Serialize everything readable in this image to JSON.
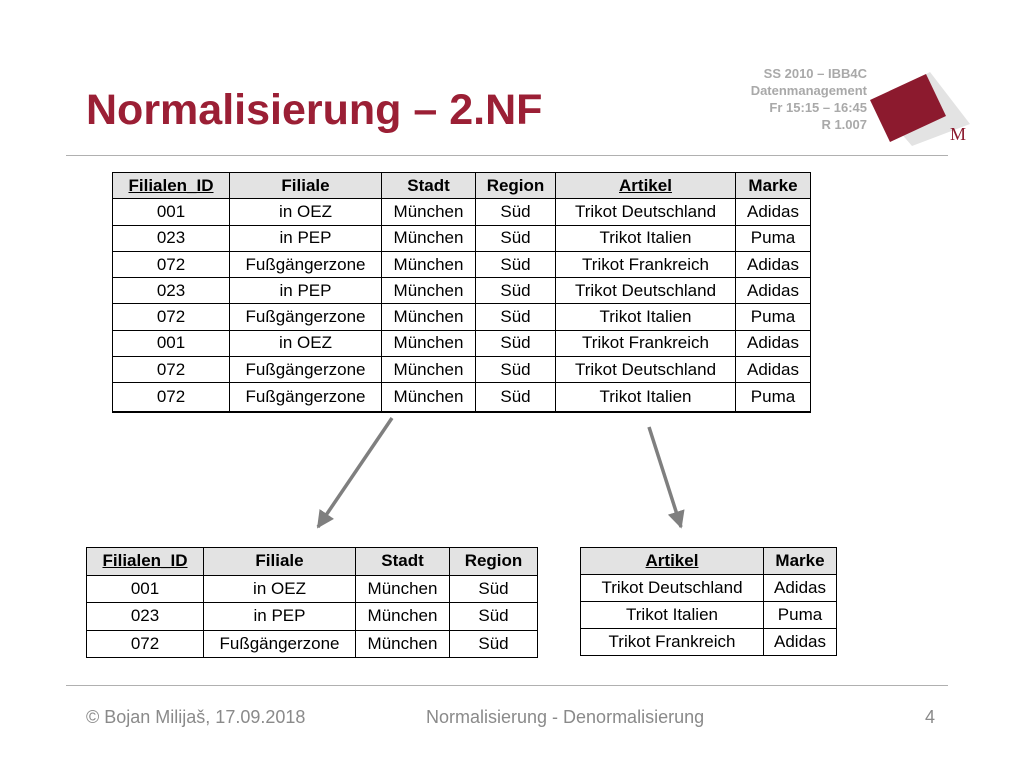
{
  "header": {
    "title": "Normalisierung – 2.NF",
    "course_lines": [
      "SS 2010 – IBB4C",
      "Datenmanagement",
      "Fr 15:15 – 16:45",
      "R 1.007"
    ],
    "logo_letter": "M"
  },
  "colors": {
    "title": "#9b1f35",
    "logo_dark": "#8c1a2e",
    "logo_light": "#e3e3e3",
    "table_header_bg": "#e3e3e3",
    "rule": "#b0b0b0",
    "footer_text": "#8a8a8a"
  },
  "tables": {
    "main": {
      "headers": [
        "Filialen_ID",
        "Filiale",
        "Stadt",
        "Region",
        "Artikel",
        "Marke"
      ],
      "rows": [
        [
          "001",
          "in OEZ",
          "München",
          "Süd",
          "Trikot Deutschland",
          "Adidas"
        ],
        [
          "023",
          "in PEP",
          "München",
          "Süd",
          "Trikot Italien",
          "Puma"
        ],
        [
          "072",
          "Fußgängerzone",
          "München",
          "Süd",
          "Trikot Frankreich",
          "Adidas"
        ],
        [
          "023",
          "in PEP",
          "München",
          "Süd",
          "Trikot Deutschland",
          "Adidas"
        ],
        [
          "072",
          "Fußgängerzone",
          "München",
          "Süd",
          "Trikot Italien",
          "Puma"
        ],
        [
          "001",
          "in OEZ",
          "München",
          "Süd",
          "Trikot Frankreich",
          "Adidas"
        ],
        [
          "072",
          "Fußgängerzone",
          "München",
          "Süd",
          "Trikot Deutschland",
          "Adidas"
        ],
        [
          "072",
          "Fußgängerzone",
          "München",
          "Süd",
          "Trikot Italien",
          "Puma"
        ]
      ]
    },
    "filiale": {
      "headers": [
        "Filialen_ID",
        "Filiale",
        "Stadt",
        "Region"
      ],
      "rows": [
        [
          "001",
          "in OEZ",
          "München",
          "Süd"
        ],
        [
          "023",
          "in PEP",
          "München",
          "Süd"
        ],
        [
          "072",
          "Fußgängerzone",
          "München",
          "Süd"
        ]
      ]
    },
    "artikel": {
      "headers": [
        "Artikel",
        "Marke"
      ],
      "rows": [
        [
          "Trikot Deutschland",
          "Adidas"
        ],
        [
          "Trikot Italien",
          "Puma"
        ],
        [
          "Trikot Frankreich",
          "Adidas"
        ]
      ]
    }
  },
  "footer": {
    "author": "© Bojan Milijaš, 17.09.2018",
    "topic": "Normalisierung - Denormalisierung",
    "page": "4"
  }
}
